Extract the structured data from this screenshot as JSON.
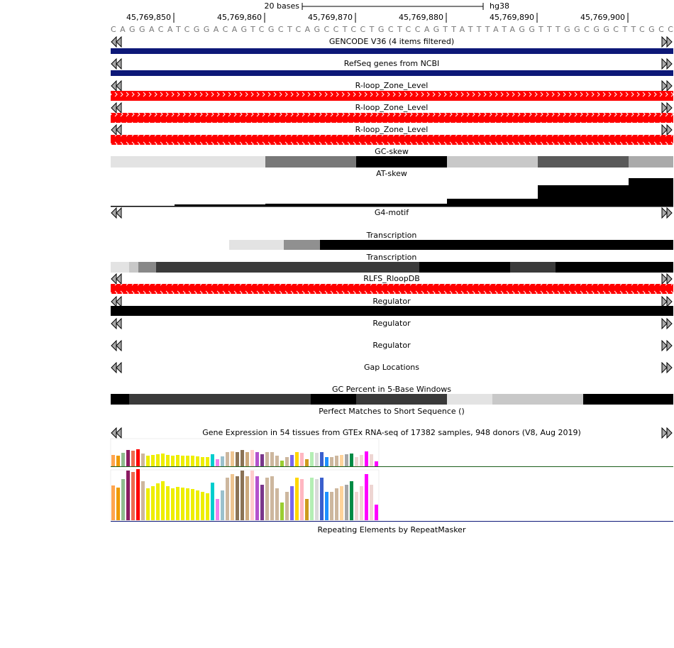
{
  "ruler": {
    "span": "20 bases",
    "assembly": "hg38",
    "positions": [
      "45,769,850",
      "45,769,860",
      "45,769,870",
      "45,769,880",
      "45,769,890",
      "45,769,900"
    ],
    "sequence": "CAGGACATCGGACAGTCGCTCAGCCTCCTGCTCCAGTTATTTATAGGTTTGGCGGCTTCGCC"
  },
  "tracks": [
    "GENCODE V36 (4 items filtered)",
    "RefSeq genes from NCBI",
    "R-loop_Zone_Level",
    "R-loop_Zone_Level",
    "R-loop_Zone_Level",
    "GC-skew",
    "AT-skew",
    "G4-motif",
    "Transcription",
    "Transcription",
    "RLFS_RloopDB",
    "Regulator",
    "Regulator",
    "Regulator",
    "Gap Locations",
    "GC Percent in 5-Base Windows",
    "Perfect Matches to Short Sequence ()",
    "Gene Expression in 54 tissues from GTEx RNA-seq of 17382 samples, 948 donors (V8, Aug 2019)",
    "Repeating Elements by RepeatMasker"
  ]
}
